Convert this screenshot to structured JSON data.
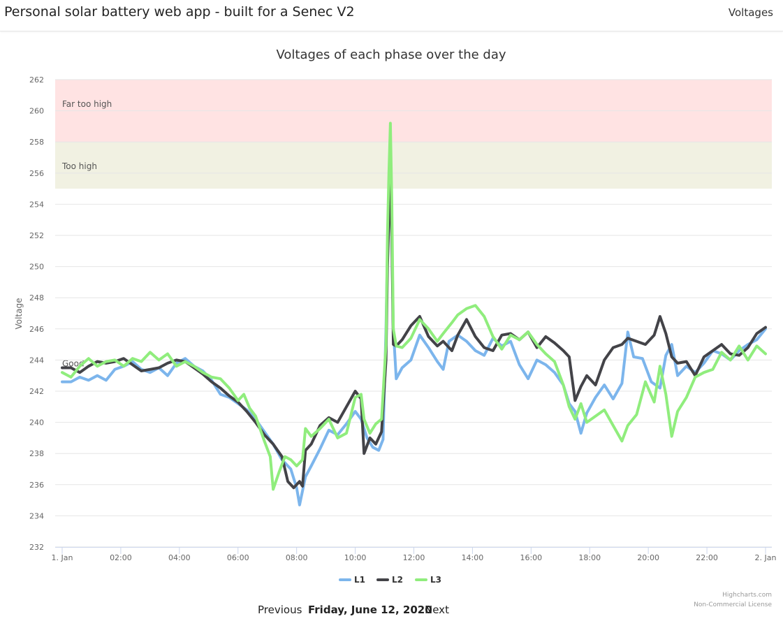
{
  "header": {
    "brand": "Personal solar battery web app - built for a Senec V2",
    "nav_link": "Voltages"
  },
  "footer": {
    "previous_label": "Previous",
    "date": "Friday, June 12, 2020",
    "next_label": "Next"
  },
  "credits": {
    "line1": "Highcharts.com",
    "line2": "Non-Commercial License"
  },
  "chart_data": {
    "type": "line",
    "title": "Voltages of each phase over the day",
    "ylabel": "Voltage",
    "ylim": [
      232,
      262
    ],
    "yticks": [
      232,
      234,
      236,
      238,
      240,
      242,
      244,
      246,
      248,
      250,
      252,
      254,
      256,
      258,
      260,
      262
    ],
    "xlim": [
      0,
      24
    ],
    "xticks": [
      {
        "x": 0,
        "label": "1. Jan"
      },
      {
        "x": 2,
        "label": "02:00"
      },
      {
        "x": 4,
        "label": "04:00"
      },
      {
        "x": 6,
        "label": "06:00"
      },
      {
        "x": 8,
        "label": "08:00"
      },
      {
        "x": 10,
        "label": "10:00"
      },
      {
        "x": 12,
        "label": "12:00"
      },
      {
        "x": 14,
        "label": "14:00"
      },
      {
        "x": 16,
        "label": "16:00"
      },
      {
        "x": 18,
        "label": "18:00"
      },
      {
        "x": 20,
        "label": "20:00"
      },
      {
        "x": 22,
        "label": "22:00"
      },
      {
        "x": 24,
        "label": "2. Jan"
      }
    ],
    "grid": true,
    "legend_placement": "bottom-center",
    "bands": [
      {
        "from": 258,
        "to": 262,
        "label": "Far too high",
        "color": "#ffe3e3"
      },
      {
        "from": 255,
        "to": 258,
        "label": "Too high",
        "color": "#f1f1e2"
      }
    ],
    "band_obscured_label": "Good",
    "series": [
      {
        "name": "L1",
        "color": "#7cb5ec",
        "points": [
          [
            0,
            242.6
          ],
          [
            0.3,
            242.6
          ],
          [
            0.6,
            242.9
          ],
          [
            0.9,
            242.7
          ],
          [
            1.2,
            243.0
          ],
          [
            1.5,
            242.7
          ],
          [
            1.8,
            243.4
          ],
          [
            2.1,
            243.6
          ],
          [
            2.4,
            243.9
          ],
          [
            2.7,
            243.4
          ],
          [
            3.0,
            243.2
          ],
          [
            3.3,
            243.5
          ],
          [
            3.6,
            243.0
          ],
          [
            3.9,
            243.8
          ],
          [
            4.2,
            244.1
          ],
          [
            4.5,
            243.6
          ],
          [
            4.8,
            243.3
          ],
          [
            5.1,
            242.7
          ],
          [
            5.4,
            241.8
          ],
          [
            5.7,
            241.6
          ],
          [
            6.0,
            241.2
          ],
          [
            6.3,
            240.8
          ],
          [
            6.6,
            240.2
          ],
          [
            6.9,
            239.4
          ],
          [
            7.2,
            238.6
          ],
          [
            7.5,
            237.6
          ],
          [
            7.8,
            237.0
          ],
          [
            8.0,
            235.8
          ],
          [
            8.1,
            234.7
          ],
          [
            8.3,
            236.5
          ],
          [
            8.5,
            237.2
          ],
          [
            8.8,
            238.3
          ],
          [
            9.1,
            239.5
          ],
          [
            9.4,
            239.2
          ],
          [
            9.7,
            239.9
          ],
          [
            10.0,
            240.7
          ],
          [
            10.2,
            240.2
          ],
          [
            10.4,
            239.0
          ],
          [
            10.6,
            238.4
          ],
          [
            10.8,
            238.2
          ],
          [
            10.95,
            238.9
          ],
          [
            11.05,
            246.0
          ],
          [
            11.1,
            251.0
          ],
          [
            11.15,
            255.0
          ],
          [
            11.2,
            256.0
          ],
          [
            11.25,
            252.0
          ],
          [
            11.3,
            246.0
          ],
          [
            11.4,
            242.8
          ],
          [
            11.6,
            243.5
          ],
          [
            11.9,
            244.0
          ],
          [
            12.2,
            245.6
          ],
          [
            12.5,
            244.8
          ],
          [
            12.8,
            243.9
          ],
          [
            13.0,
            243.4
          ],
          [
            13.2,
            245.2
          ],
          [
            13.5,
            245.6
          ],
          [
            13.8,
            245.2
          ],
          [
            14.1,
            244.6
          ],
          [
            14.4,
            244.3
          ],
          [
            14.7,
            245.4
          ],
          [
            15.0,
            244.9
          ],
          [
            15.3,
            245.2
          ],
          [
            15.6,
            243.7
          ],
          [
            15.9,
            242.8
          ],
          [
            16.2,
            244.0
          ],
          [
            16.5,
            243.7
          ],
          [
            16.8,
            243.2
          ],
          [
            17.1,
            242.4
          ],
          [
            17.3,
            241.2
          ],
          [
            17.5,
            240.7
          ],
          [
            17.7,
            239.3
          ],
          [
            17.9,
            240.6
          ],
          [
            18.2,
            241.6
          ],
          [
            18.5,
            242.4
          ],
          [
            18.8,
            241.5
          ],
          [
            19.1,
            242.5
          ],
          [
            19.3,
            245.8
          ],
          [
            19.5,
            244.2
          ],
          [
            19.8,
            244.1
          ],
          [
            20.1,
            242.6
          ],
          [
            20.4,
            242.2
          ],
          [
            20.6,
            244.3
          ],
          [
            20.8,
            245.0
          ],
          [
            21.0,
            243.0
          ],
          [
            21.3,
            243.6
          ],
          [
            21.6,
            243.2
          ],
          [
            21.9,
            243.8
          ],
          [
            22.2,
            244.6
          ],
          [
            22.5,
            244.4
          ],
          [
            22.8,
            244.0
          ],
          [
            23.1,
            244.6
          ],
          [
            23.4,
            245.0
          ],
          [
            23.7,
            245.3
          ],
          [
            24.0,
            246.0
          ]
        ]
      },
      {
        "name": "L2",
        "color": "#434348",
        "points": [
          [
            0,
            243.5
          ],
          [
            0.3,
            243.5
          ],
          [
            0.6,
            243.2
          ],
          [
            0.9,
            243.6
          ],
          [
            1.2,
            243.9
          ],
          [
            1.5,
            243.8
          ],
          [
            1.8,
            243.9
          ],
          [
            2.1,
            244.1
          ],
          [
            2.4,
            243.7
          ],
          [
            2.7,
            243.3
          ],
          [
            3.0,
            243.4
          ],
          [
            3.3,
            243.5
          ],
          [
            3.6,
            243.8
          ],
          [
            3.9,
            244.0
          ],
          [
            4.2,
            243.9
          ],
          [
            4.5,
            243.5
          ],
          [
            4.8,
            243.1
          ],
          [
            5.1,
            242.6
          ],
          [
            5.4,
            242.2
          ],
          [
            5.7,
            241.7
          ],
          [
            6.0,
            241.3
          ],
          [
            6.3,
            240.7
          ],
          [
            6.6,
            240.0
          ],
          [
            6.9,
            239.2
          ],
          [
            7.2,
            238.6
          ],
          [
            7.5,
            237.8
          ],
          [
            7.7,
            236.2
          ],
          [
            7.9,
            235.8
          ],
          [
            8.1,
            236.2
          ],
          [
            8.2,
            235.9
          ],
          [
            8.3,
            238.2
          ],
          [
            8.5,
            238.6
          ],
          [
            8.8,
            239.8
          ],
          [
            9.1,
            240.3
          ],
          [
            9.4,
            240.0
          ],
          [
            9.7,
            241.0
          ],
          [
            10.0,
            242.0
          ],
          [
            10.2,
            241.5
          ],
          [
            10.3,
            238.0
          ],
          [
            10.5,
            239.0
          ],
          [
            10.7,
            238.6
          ],
          [
            10.9,
            239.4
          ],
          [
            11.05,
            244.0
          ],
          [
            11.1,
            250.0
          ],
          [
            11.15,
            253.0
          ],
          [
            11.2,
            256.8
          ],
          [
            11.25,
            252.0
          ],
          [
            11.3,
            245.0
          ],
          [
            11.4,
            244.9
          ],
          [
            11.6,
            245.3
          ],
          [
            11.9,
            246.2
          ],
          [
            12.2,
            246.8
          ],
          [
            12.5,
            245.5
          ],
          [
            12.8,
            244.9
          ],
          [
            13.0,
            245.2
          ],
          [
            13.3,
            244.6
          ],
          [
            13.5,
            245.6
          ],
          [
            13.8,
            246.6
          ],
          [
            14.1,
            245.5
          ],
          [
            14.4,
            244.8
          ],
          [
            14.7,
            244.6
          ],
          [
            15.0,
            245.6
          ],
          [
            15.3,
            245.7
          ],
          [
            15.6,
            245.3
          ],
          [
            15.9,
            245.8
          ],
          [
            16.2,
            244.8
          ],
          [
            16.5,
            245.5
          ],
          [
            16.8,
            245.1
          ],
          [
            17.1,
            244.6
          ],
          [
            17.3,
            244.2
          ],
          [
            17.5,
            241.4
          ],
          [
            17.7,
            242.3
          ],
          [
            17.9,
            243.0
          ],
          [
            18.2,
            242.4
          ],
          [
            18.5,
            244.0
          ],
          [
            18.8,
            244.8
          ],
          [
            19.1,
            245.0
          ],
          [
            19.3,
            245.4
          ],
          [
            19.6,
            245.2
          ],
          [
            19.9,
            245.0
          ],
          [
            20.2,
            245.6
          ],
          [
            20.4,
            246.8
          ],
          [
            20.6,
            245.7
          ],
          [
            20.8,
            244.2
          ],
          [
            21.0,
            243.8
          ],
          [
            21.3,
            243.9
          ],
          [
            21.6,
            243.0
          ],
          [
            21.9,
            244.2
          ],
          [
            22.2,
            244.6
          ],
          [
            22.5,
            245.0
          ],
          [
            22.8,
            244.4
          ],
          [
            23.1,
            244.3
          ],
          [
            23.4,
            244.8
          ],
          [
            23.7,
            245.7
          ],
          [
            24.0,
            246.1
          ]
        ]
      },
      {
        "name": "L3",
        "color": "#90ed7d",
        "points": [
          [
            0,
            243.2
          ],
          [
            0.3,
            242.9
          ],
          [
            0.6,
            243.6
          ],
          [
            0.9,
            244.1
          ],
          [
            1.2,
            243.6
          ],
          [
            1.5,
            243.9
          ],
          [
            1.8,
            244.0
          ],
          [
            2.1,
            243.6
          ],
          [
            2.4,
            244.1
          ],
          [
            2.7,
            243.9
          ],
          [
            3.0,
            244.5
          ],
          [
            3.3,
            244.0
          ],
          [
            3.6,
            244.4
          ],
          [
            3.9,
            243.6
          ],
          [
            4.2,
            243.9
          ],
          [
            4.5,
            243.6
          ],
          [
            4.8,
            243.2
          ],
          [
            5.1,
            242.9
          ],
          [
            5.4,
            242.8
          ],
          [
            5.7,
            242.2
          ],
          [
            6.0,
            241.4
          ],
          [
            6.2,
            241.8
          ],
          [
            6.4,
            240.9
          ],
          [
            6.6,
            240.4
          ],
          [
            6.9,
            238.8
          ],
          [
            7.1,
            237.8
          ],
          [
            7.2,
            235.7
          ],
          [
            7.4,
            236.8
          ],
          [
            7.6,
            237.8
          ],
          [
            7.8,
            237.6
          ],
          [
            8.0,
            237.2
          ],
          [
            8.2,
            237.6
          ],
          [
            8.3,
            239.6
          ],
          [
            8.5,
            239.1
          ],
          [
            8.8,
            239.6
          ],
          [
            9.1,
            240.2
          ],
          [
            9.4,
            239.0
          ],
          [
            9.7,
            239.3
          ],
          [
            10.0,
            241.6
          ],
          [
            10.2,
            241.8
          ],
          [
            10.3,
            240.2
          ],
          [
            10.5,
            239.3
          ],
          [
            10.7,
            239.9
          ],
          [
            10.9,
            240.2
          ],
          [
            11.05,
            245.0
          ],
          [
            11.1,
            252.0
          ],
          [
            11.15,
            256.0
          ],
          [
            11.2,
            259.2
          ],
          [
            11.25,
            254.0
          ],
          [
            11.3,
            246.0
          ],
          [
            11.4,
            244.9
          ],
          [
            11.6,
            244.8
          ],
          [
            11.9,
            245.4
          ],
          [
            12.2,
            246.6
          ],
          [
            12.5,
            246.0
          ],
          [
            12.8,
            245.2
          ],
          [
            13.0,
            245.7
          ],
          [
            13.3,
            246.4
          ],
          [
            13.5,
            246.9
          ],
          [
            13.8,
            247.3
          ],
          [
            14.1,
            247.5
          ],
          [
            14.4,
            246.8
          ],
          [
            14.7,
            245.5
          ],
          [
            15.0,
            244.7
          ],
          [
            15.3,
            245.6
          ],
          [
            15.6,
            245.3
          ],
          [
            15.9,
            245.8
          ],
          [
            16.2,
            245.0
          ],
          [
            16.5,
            244.4
          ],
          [
            16.8,
            243.9
          ],
          [
            17.1,
            242.4
          ],
          [
            17.3,
            241.0
          ],
          [
            17.5,
            240.2
          ],
          [
            17.7,
            241.2
          ],
          [
            17.9,
            240.0
          ],
          [
            18.2,
            240.4
          ],
          [
            18.5,
            240.8
          ],
          [
            18.8,
            239.8
          ],
          [
            19.1,
            238.8
          ],
          [
            19.3,
            239.8
          ],
          [
            19.6,
            240.5
          ],
          [
            19.9,
            242.6
          ],
          [
            20.2,
            241.3
          ],
          [
            20.4,
            243.6
          ],
          [
            20.6,
            241.8
          ],
          [
            20.8,
            239.1
          ],
          [
            21.0,
            240.7
          ],
          [
            21.3,
            241.6
          ],
          [
            21.6,
            242.9
          ],
          [
            21.9,
            243.2
          ],
          [
            22.2,
            243.4
          ],
          [
            22.5,
            244.5
          ],
          [
            22.8,
            244.0
          ],
          [
            23.1,
            244.9
          ],
          [
            23.4,
            244.0
          ],
          [
            23.7,
            244.9
          ],
          [
            24.0,
            244.4
          ]
        ]
      }
    ]
  }
}
